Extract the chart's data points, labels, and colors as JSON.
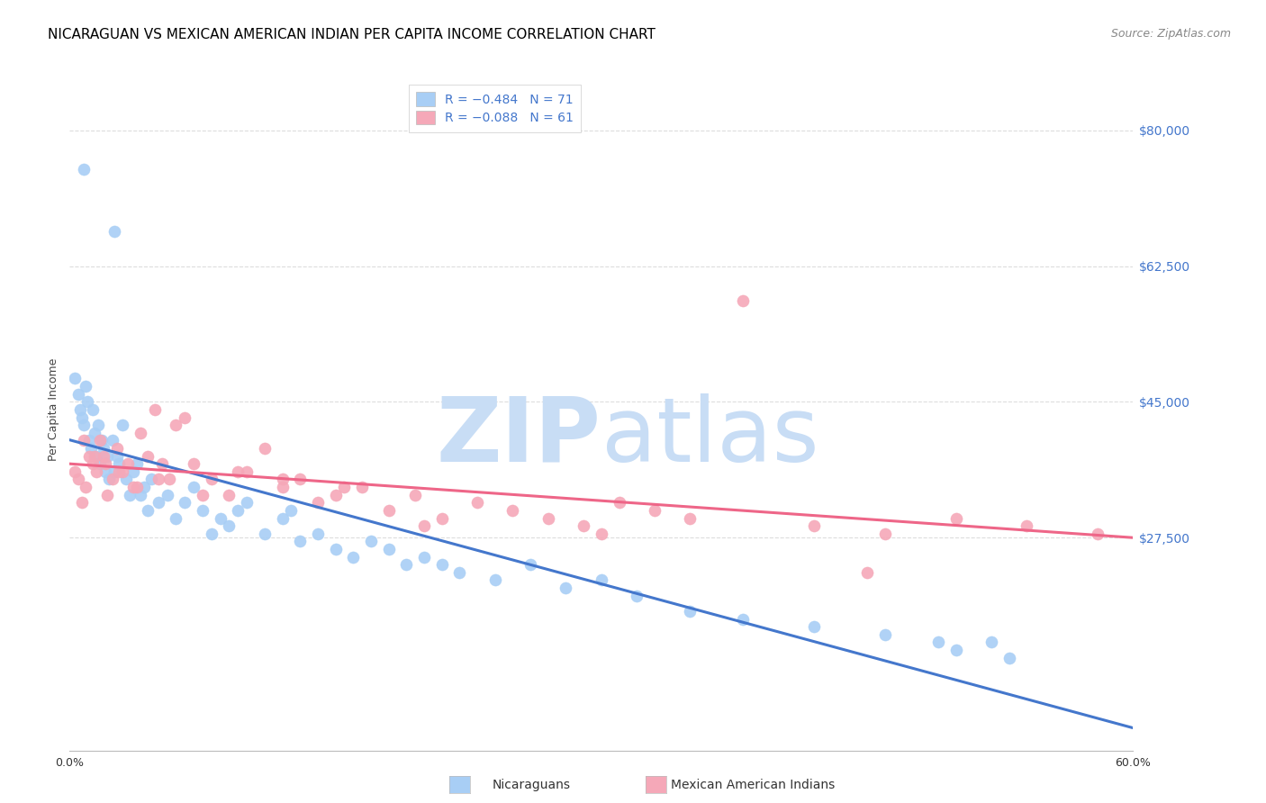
{
  "title": "NICARAGUAN VS MEXICAN AMERICAN INDIAN PER CAPITA INCOME CORRELATION CHART",
  "source_text": "Source: ZipAtlas.com",
  "ylabel": "Per Capita Income",
  "ytick_labels_right": [
    "$27,500",
    "$45,000",
    "$62,500",
    "$80,000"
  ],
  "ytick_positions_right": [
    27500,
    45000,
    62500,
    80000
  ],
  "xmin": 0.0,
  "xmax": 0.6,
  "ymin": 0,
  "ymax": 88000,
  "legend_blue_r": "R = −0.484",
  "legend_blue_n": "N = 71",
  "legend_pink_r": "R = −0.088",
  "legend_pink_n": "N = 61",
  "blue_color": "#a8cef5",
  "pink_color": "#f5a8b8",
  "blue_line_color": "#4477cc",
  "pink_line_color": "#ee6688",
  "right_tick_color": "#4477cc",
  "watermark_zip_color": "#c8ddf5",
  "watermark_atlas_color": "#c8ddf5",
  "title_fontsize": 11,
  "source_fontsize": 9,
  "axis_label_fontsize": 9,
  "tick_fontsize": 9,
  "legend_fontsize": 10,
  "blue_intercept": 37000,
  "blue_slope": -72000,
  "pink_intercept": 33000,
  "pink_slope": -8000
}
